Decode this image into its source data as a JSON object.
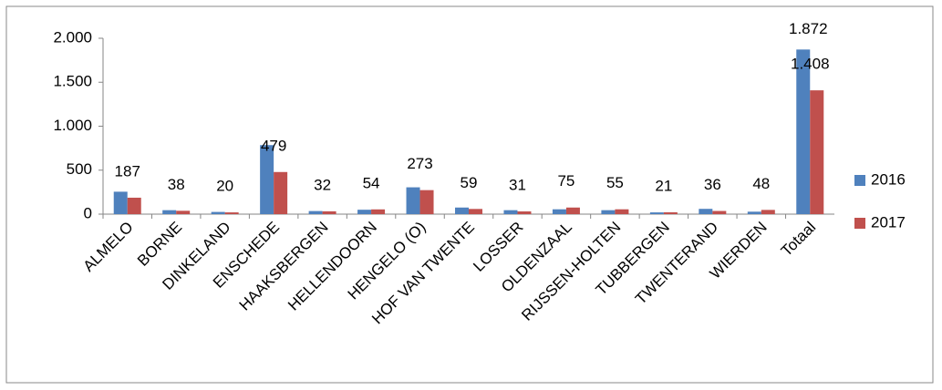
{
  "chart_data": {
    "type": "bar",
    "categories": [
      "ALMELO",
      "BORNE",
      "DINKELAND",
      "ENSCHEDE",
      "HAAKSBERGEN",
      "HELLENDOORN",
      "HENGELO (O)",
      "HOF VAN TWENTE",
      "LOSSER",
      "OLDENZAAL",
      "RIJSSEN-HOLTEN",
      "TUBBERGEN",
      "TWENTERAND",
      "WIERDEN",
      "Totaal"
    ],
    "series": [
      {
        "name": "2016",
        "color": "#4f81bd",
        "values": [
          255,
          45,
          25,
          785,
          35,
          50,
          305,
          75,
          45,
          55,
          45,
          20,
          60,
          28,
          1872
        ],
        "value_labels": [
          null,
          null,
          null,
          null,
          null,
          null,
          null,
          null,
          null,
          null,
          null,
          null,
          null,
          null,
          "1.872"
        ]
      },
      {
        "name": "2017",
        "color": "#c0504d",
        "values": [
          187,
          38,
          20,
          479,
          32,
          54,
          273,
          59,
          31,
          75,
          55,
          21,
          36,
          48,
          1408
        ],
        "value_labels": [
          "187",
          "38",
          "20",
          "479",
          "32",
          "54",
          "273",
          "59",
          "31",
          "75",
          "55",
          "21",
          "36",
          "48",
          "1.408"
        ]
      }
    ],
    "ylim": [
      0,
      2000
    ],
    "yticks": [
      {
        "value": 0,
        "label": "0"
      },
      {
        "value": 500,
        "label": "500"
      },
      {
        "value": 1000,
        "label": "1.000"
      },
      {
        "value": 1500,
        "label": "1.500"
      },
      {
        "value": 2000,
        "label": "2.000"
      }
    ],
    "legend": "right"
  }
}
